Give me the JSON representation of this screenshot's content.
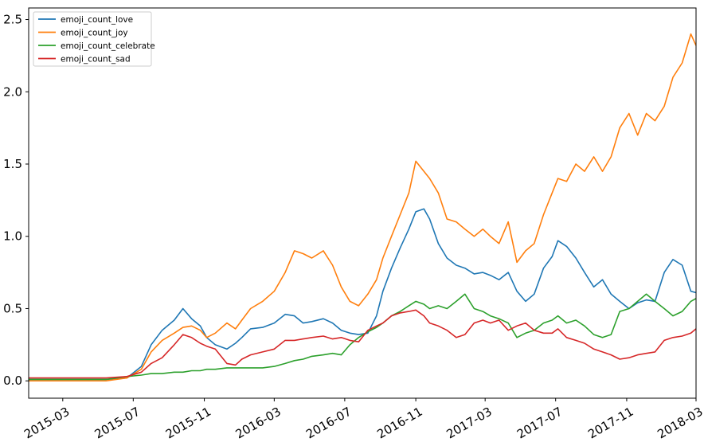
{
  "chart_data": {
    "type": "line",
    "title": "",
    "xlabel": "",
    "ylabel": "",
    "xlim": [
      "2015-01-01",
      "2018-03-01"
    ],
    "ylim": [
      -0.12,
      2.58
    ],
    "x_ticks": [
      "2015-03",
      "2015-07",
      "2015-11",
      "2016-03",
      "2016-07",
      "2016-11",
      "2017-03",
      "2017-07",
      "2017-11",
      "2018-03"
    ],
    "y_ticks": [
      "0.0",
      "0.5",
      "1.0",
      "1.5",
      "2.0",
      "2.5"
    ],
    "grid": false,
    "legend": "top-left",
    "series": [
      {
        "name": "emoji_count_love",
        "color": "#1f77b4",
        "points": [
          [
            "2015-01-01",
            0.01
          ],
          [
            "2015-05-15",
            0.01
          ],
          [
            "2015-06-20",
            0.02
          ],
          [
            "2015-07-15",
            0.1
          ],
          [
            "2015-08-01",
            0.25
          ],
          [
            "2015-08-20",
            0.35
          ],
          [
            "2015-09-10",
            0.42
          ],
          [
            "2015-09-25",
            0.5
          ],
          [
            "2015-10-10",
            0.43
          ],
          [
            "2015-10-25",
            0.38
          ],
          [
            "2015-11-05",
            0.3
          ],
          [
            "2015-11-20",
            0.25
          ],
          [
            "2015-12-10",
            0.22
          ],
          [
            "2015-12-25",
            0.26
          ],
          [
            "2016-01-05",
            0.3
          ],
          [
            "2016-01-20",
            0.36
          ],
          [
            "2016-02-10",
            0.37
          ],
          [
            "2016-03-01",
            0.4
          ],
          [
            "2016-03-20",
            0.46
          ],
          [
            "2016-04-05",
            0.45
          ],
          [
            "2016-04-20",
            0.4
          ],
          [
            "2016-05-05",
            0.41
          ],
          [
            "2016-05-25",
            0.43
          ],
          [
            "2016-06-10",
            0.4
          ],
          [
            "2016-06-25",
            0.35
          ],
          [
            "2016-07-10",
            0.33
          ],
          [
            "2016-07-25",
            0.32
          ],
          [
            "2016-08-10",
            0.33
          ],
          [
            "2016-08-25",
            0.45
          ],
          [
            "2016-09-05",
            0.62
          ],
          [
            "2016-09-20",
            0.78
          ],
          [
            "2016-10-05",
            0.92
          ],
          [
            "2016-10-20",
            1.05
          ],
          [
            "2016-11-01",
            1.17
          ],
          [
            "2016-11-15",
            1.19
          ],
          [
            "2016-11-25",
            1.12
          ],
          [
            "2016-12-10",
            0.95
          ],
          [
            "2016-12-25",
            0.85
          ],
          [
            "2017-01-10",
            0.8
          ],
          [
            "2017-01-25",
            0.78
          ],
          [
            "2017-02-10",
            0.74
          ],
          [
            "2017-02-25",
            0.75
          ],
          [
            "2017-03-10",
            0.73
          ],
          [
            "2017-03-25",
            0.7
          ],
          [
            "2017-04-10",
            0.75
          ],
          [
            "2017-04-25",
            0.62
          ],
          [
            "2017-05-10",
            0.55
          ],
          [
            "2017-05-25",
            0.6
          ],
          [
            "2017-06-10",
            0.78
          ],
          [
            "2017-06-25",
            0.86
          ],
          [
            "2017-07-05",
            0.97
          ],
          [
            "2017-07-20",
            0.93
          ],
          [
            "2017-08-05",
            0.85
          ],
          [
            "2017-08-20",
            0.75
          ],
          [
            "2017-09-05",
            0.65
          ],
          [
            "2017-09-20",
            0.7
          ],
          [
            "2017-10-05",
            0.6
          ],
          [
            "2017-10-20",
            0.55
          ],
          [
            "2017-11-05",
            0.5
          ],
          [
            "2017-11-20",
            0.54
          ],
          [
            "2017-12-05",
            0.56
          ],
          [
            "2017-12-20",
            0.55
          ],
          [
            "2018-01-05",
            0.75
          ],
          [
            "2018-01-20",
            0.84
          ],
          [
            "2018-02-05",
            0.8
          ],
          [
            "2018-02-20",
            0.62
          ],
          [
            "2018-03-01",
            0.61
          ]
        ]
      },
      {
        "name": "emoji_count_joy",
        "color": "#ff7f0e",
        "points": [
          [
            "2015-01-01",
            0.0
          ],
          [
            "2015-05-15",
            0.0
          ],
          [
            "2015-06-20",
            0.02
          ],
          [
            "2015-07-15",
            0.08
          ],
          [
            "2015-08-01",
            0.2
          ],
          [
            "2015-08-20",
            0.28
          ],
          [
            "2015-09-10",
            0.33
          ],
          [
            "2015-09-25",
            0.37
          ],
          [
            "2015-10-10",
            0.38
          ],
          [
            "2015-10-25",
            0.35
          ],
          [
            "2015-11-05",
            0.3
          ],
          [
            "2015-11-20",
            0.33
          ],
          [
            "2015-12-10",
            0.4
          ],
          [
            "2015-12-25",
            0.36
          ],
          [
            "2016-01-05",
            0.42
          ],
          [
            "2016-01-20",
            0.5
          ],
          [
            "2016-02-10",
            0.55
          ],
          [
            "2016-03-01",
            0.62
          ],
          [
            "2016-03-20",
            0.75
          ],
          [
            "2016-04-05",
            0.9
          ],
          [
            "2016-04-20",
            0.88
          ],
          [
            "2016-05-05",
            0.85
          ],
          [
            "2016-05-25",
            0.9
          ],
          [
            "2016-06-10",
            0.8
          ],
          [
            "2016-06-25",
            0.65
          ],
          [
            "2016-07-10",
            0.55
          ],
          [
            "2016-07-25",
            0.52
          ],
          [
            "2016-08-10",
            0.6
          ],
          [
            "2016-08-25",
            0.7
          ],
          [
            "2016-09-05",
            0.85
          ],
          [
            "2016-09-20",
            1.0
          ],
          [
            "2016-10-05",
            1.15
          ],
          [
            "2016-10-20",
            1.3
          ],
          [
            "2016-11-01",
            1.52
          ],
          [
            "2016-11-15",
            1.45
          ],
          [
            "2016-11-25",
            1.4
          ],
          [
            "2016-12-10",
            1.3
          ],
          [
            "2016-12-25",
            1.12
          ],
          [
            "2017-01-10",
            1.1
          ],
          [
            "2017-01-25",
            1.05
          ],
          [
            "2017-02-10",
            1.0
          ],
          [
            "2017-02-25",
            1.05
          ],
          [
            "2017-03-10",
            1.0
          ],
          [
            "2017-03-25",
            0.95
          ],
          [
            "2017-04-10",
            1.1
          ],
          [
            "2017-04-25",
            0.82
          ],
          [
            "2017-05-10",
            0.9
          ],
          [
            "2017-05-25",
            0.95
          ],
          [
            "2017-06-10",
            1.15
          ],
          [
            "2017-06-25",
            1.3
          ],
          [
            "2017-07-05",
            1.4
          ],
          [
            "2017-07-20",
            1.38
          ],
          [
            "2017-08-05",
            1.5
          ],
          [
            "2017-08-20",
            1.45
          ],
          [
            "2017-09-05",
            1.55
          ],
          [
            "2017-09-20",
            1.45
          ],
          [
            "2017-10-05",
            1.55
          ],
          [
            "2017-10-20",
            1.75
          ],
          [
            "2017-11-05",
            1.85
          ],
          [
            "2017-11-20",
            1.7
          ],
          [
            "2017-12-05",
            1.85
          ],
          [
            "2017-12-20",
            1.8
          ],
          [
            "2018-01-05",
            1.9
          ],
          [
            "2018-01-20",
            2.1
          ],
          [
            "2018-02-05",
            2.2
          ],
          [
            "2018-02-20",
            2.4
          ],
          [
            "2018-03-01",
            2.32
          ]
        ]
      },
      {
        "name": "emoji_count_celebrate",
        "color": "#2ca02c",
        "points": [
          [
            "2015-01-01",
            0.01
          ],
          [
            "2015-05-15",
            0.01
          ],
          [
            "2015-06-20",
            0.03
          ],
          [
            "2015-07-15",
            0.04
          ],
          [
            "2015-08-01",
            0.05
          ],
          [
            "2015-08-20",
            0.05
          ],
          [
            "2015-09-10",
            0.06
          ],
          [
            "2015-09-25",
            0.06
          ],
          [
            "2015-10-10",
            0.07
          ],
          [
            "2015-10-25",
            0.07
          ],
          [
            "2015-11-05",
            0.08
          ],
          [
            "2015-11-20",
            0.08
          ],
          [
            "2015-12-10",
            0.09
          ],
          [
            "2015-12-25",
            0.09
          ],
          [
            "2016-01-05",
            0.09
          ],
          [
            "2016-01-20",
            0.09
          ],
          [
            "2016-02-10",
            0.09
          ],
          [
            "2016-03-01",
            0.1
          ],
          [
            "2016-03-20",
            0.12
          ],
          [
            "2016-04-05",
            0.14
          ],
          [
            "2016-04-20",
            0.15
          ],
          [
            "2016-05-05",
            0.17
          ],
          [
            "2016-05-25",
            0.18
          ],
          [
            "2016-06-10",
            0.19
          ],
          [
            "2016-06-25",
            0.18
          ],
          [
            "2016-07-10",
            0.25
          ],
          [
            "2016-07-25",
            0.3
          ],
          [
            "2016-08-10",
            0.34
          ],
          [
            "2016-08-25",
            0.37
          ],
          [
            "2016-09-05",
            0.4
          ],
          [
            "2016-09-20",
            0.45
          ],
          [
            "2016-10-05",
            0.48
          ],
          [
            "2016-10-20",
            0.52
          ],
          [
            "2016-11-01",
            0.55
          ],
          [
            "2016-11-15",
            0.53
          ],
          [
            "2016-11-25",
            0.5
          ],
          [
            "2016-12-10",
            0.52
          ],
          [
            "2016-12-25",
            0.5
          ],
          [
            "2017-01-10",
            0.55
          ],
          [
            "2017-01-25",
            0.6
          ],
          [
            "2017-02-10",
            0.5
          ],
          [
            "2017-02-25",
            0.48
          ],
          [
            "2017-03-10",
            0.45
          ],
          [
            "2017-03-25",
            0.43
          ],
          [
            "2017-04-10",
            0.4
          ],
          [
            "2017-04-25",
            0.3
          ],
          [
            "2017-05-10",
            0.33
          ],
          [
            "2017-05-25",
            0.35
          ],
          [
            "2017-06-10",
            0.4
          ],
          [
            "2017-06-25",
            0.42
          ],
          [
            "2017-07-05",
            0.45
          ],
          [
            "2017-07-20",
            0.4
          ],
          [
            "2017-08-05",
            0.42
          ],
          [
            "2017-08-20",
            0.38
          ],
          [
            "2017-09-05",
            0.32
          ],
          [
            "2017-09-20",
            0.3
          ],
          [
            "2017-10-05",
            0.32
          ],
          [
            "2017-10-20",
            0.48
          ],
          [
            "2017-11-05",
            0.5
          ],
          [
            "2017-11-20",
            0.55
          ],
          [
            "2017-12-05",
            0.6
          ],
          [
            "2017-12-20",
            0.55
          ],
          [
            "2018-01-05",
            0.5
          ],
          [
            "2018-01-20",
            0.45
          ],
          [
            "2018-02-05",
            0.48
          ],
          [
            "2018-02-20",
            0.55
          ],
          [
            "2018-03-01",
            0.57
          ]
        ]
      },
      {
        "name": "emoji_count_sad",
        "color": "#d62728",
        "points": [
          [
            "2015-01-01",
            0.02
          ],
          [
            "2015-05-15",
            0.02
          ],
          [
            "2015-06-20",
            0.03
          ],
          [
            "2015-07-15",
            0.06
          ],
          [
            "2015-08-01",
            0.12
          ],
          [
            "2015-08-20",
            0.16
          ],
          [
            "2015-09-10",
            0.25
          ],
          [
            "2015-09-25",
            0.32
          ],
          [
            "2015-10-10",
            0.3
          ],
          [
            "2015-10-25",
            0.26
          ],
          [
            "2015-11-05",
            0.24
          ],
          [
            "2015-11-20",
            0.22
          ],
          [
            "2015-12-10",
            0.12
          ],
          [
            "2015-12-25",
            0.11
          ],
          [
            "2016-01-05",
            0.15
          ],
          [
            "2016-01-20",
            0.18
          ],
          [
            "2016-02-10",
            0.2
          ],
          [
            "2016-03-01",
            0.22
          ],
          [
            "2016-03-20",
            0.28
          ],
          [
            "2016-04-05",
            0.28
          ],
          [
            "2016-04-20",
            0.29
          ],
          [
            "2016-05-05",
            0.3
          ],
          [
            "2016-05-25",
            0.31
          ],
          [
            "2016-06-10",
            0.29
          ],
          [
            "2016-06-25",
            0.3
          ],
          [
            "2016-07-10",
            0.28
          ],
          [
            "2016-07-25",
            0.27
          ],
          [
            "2016-08-10",
            0.35
          ],
          [
            "2016-08-25",
            0.38
          ],
          [
            "2016-09-05",
            0.4
          ],
          [
            "2016-09-20",
            0.45
          ],
          [
            "2016-10-05",
            0.47
          ],
          [
            "2016-10-20",
            0.48
          ],
          [
            "2016-11-01",
            0.49
          ],
          [
            "2016-11-15",
            0.45
          ],
          [
            "2016-11-25",
            0.4
          ],
          [
            "2016-12-10",
            0.38
          ],
          [
            "2016-12-25",
            0.35
          ],
          [
            "2017-01-10",
            0.3
          ],
          [
            "2017-01-25",
            0.32
          ],
          [
            "2017-02-10",
            0.4
          ],
          [
            "2017-02-25",
            0.42
          ],
          [
            "2017-03-10",
            0.4
          ],
          [
            "2017-03-25",
            0.42
          ],
          [
            "2017-04-10",
            0.35
          ],
          [
            "2017-04-25",
            0.38
          ],
          [
            "2017-05-10",
            0.4
          ],
          [
            "2017-05-25",
            0.35
          ],
          [
            "2017-06-10",
            0.33
          ],
          [
            "2017-06-25",
            0.33
          ],
          [
            "2017-07-05",
            0.36
          ],
          [
            "2017-07-20",
            0.3
          ],
          [
            "2017-08-05",
            0.28
          ],
          [
            "2017-08-20",
            0.26
          ],
          [
            "2017-09-05",
            0.22
          ],
          [
            "2017-09-20",
            0.2
          ],
          [
            "2017-10-05",
            0.18
          ],
          [
            "2017-10-20",
            0.15
          ],
          [
            "2017-11-05",
            0.16
          ],
          [
            "2017-11-20",
            0.18
          ],
          [
            "2017-12-05",
            0.19
          ],
          [
            "2017-12-20",
            0.2
          ],
          [
            "2018-01-05",
            0.28
          ],
          [
            "2018-01-20",
            0.3
          ],
          [
            "2018-02-05",
            0.31
          ],
          [
            "2018-02-20",
            0.33
          ],
          [
            "2018-03-01",
            0.36
          ]
        ]
      }
    ]
  }
}
